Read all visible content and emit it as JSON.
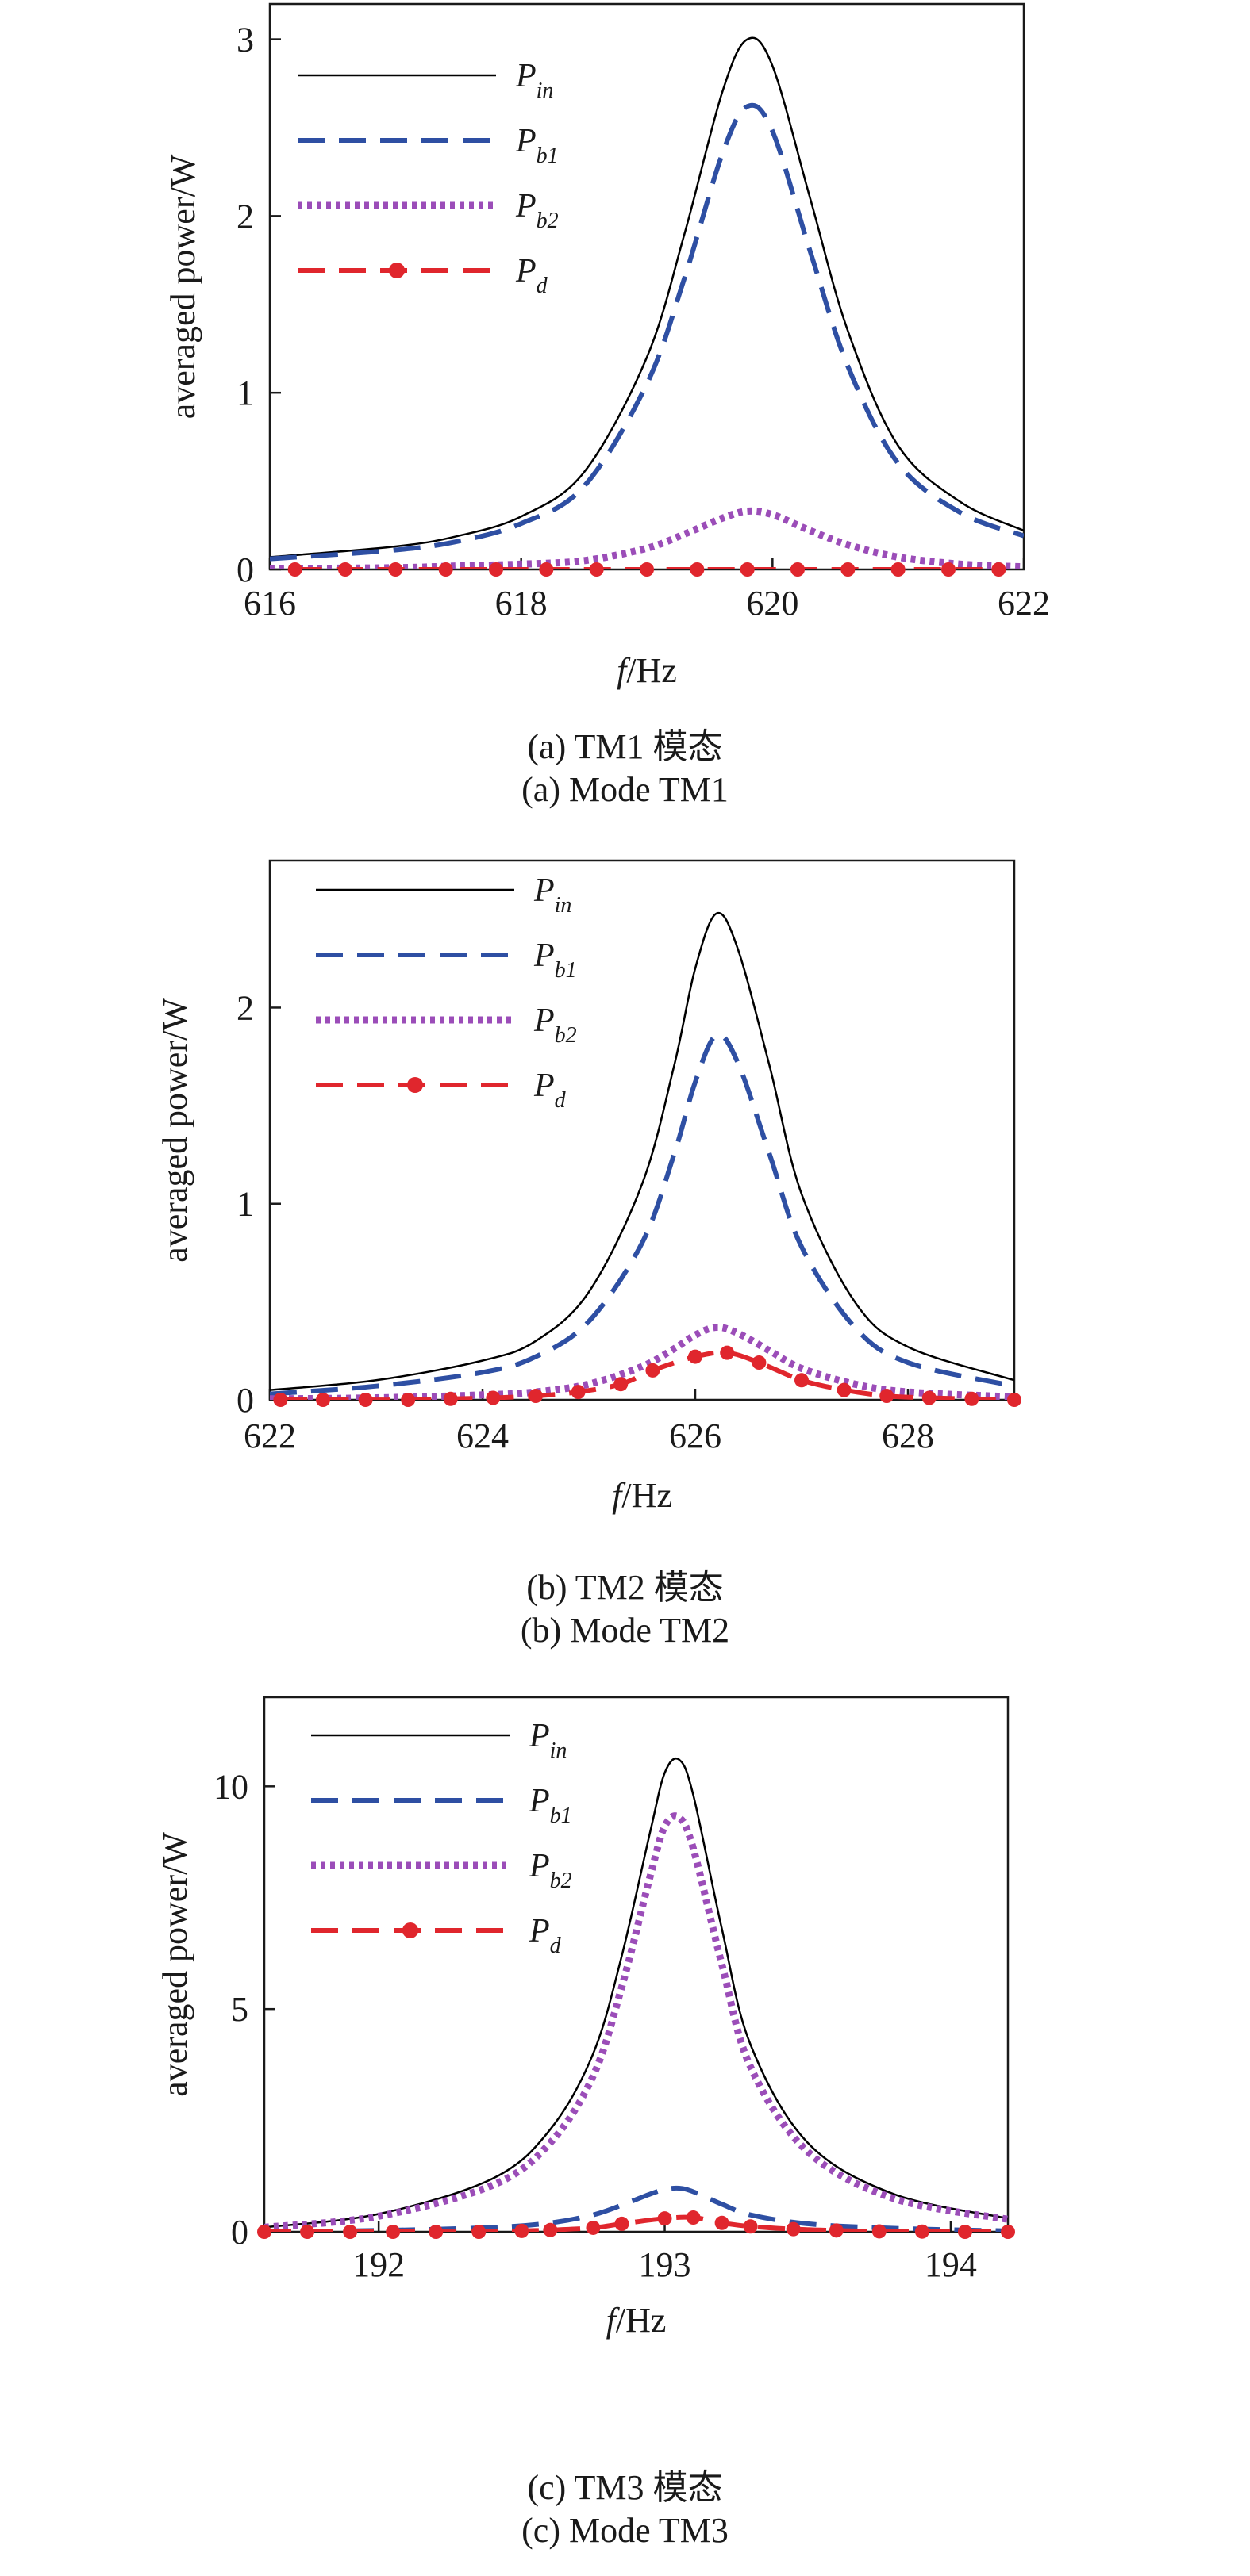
{
  "chart_data": [
    {
      "id": "a",
      "type": "line",
      "xlabel_var": "f",
      "xlabel_unit": "/Hz",
      "ylabel": "averaged power/W",
      "xlim": [
        616,
        622
      ],
      "ylim": [
        0,
        3.2
      ],
      "xticks": [
        "616",
        "618",
        "620",
        "622"
      ],
      "xtick_values": [
        616,
        618,
        620,
        622
      ],
      "yticks": [
        "0",
        "1",
        "2",
        "3"
      ],
      "ytick_values": [
        0,
        1,
        2,
        3
      ],
      "caption_cn": "(a) TM1 模态",
      "caption_en": "(a) Mode TM1",
      "series": [
        {
          "key": "Pin",
          "label_main": "P",
          "label_sub": "in",
          "color": "#000000",
          "style": "solid",
          "x": [
            616,
            617,
            617.5,
            618,
            618.5,
            619,
            619.3,
            619.6,
            619.8,
            620,
            620.3,
            620.6,
            621,
            621.5,
            622
          ],
          "y": [
            0.07,
            0.13,
            0.19,
            0.3,
            0.55,
            1.2,
            1.9,
            2.7,
            3.0,
            2.85,
            2.1,
            1.35,
            0.7,
            0.38,
            0.22
          ]
        },
        {
          "key": "Pb1",
          "label_main": "P",
          "label_sub": "b1",
          "color": "#2e4fa3",
          "style": "dash",
          "x": [
            616,
            617,
            617.5,
            618,
            618.5,
            619,
            619.3,
            619.6,
            619.8,
            620,
            620.3,
            620.6,
            621,
            621.5,
            622
          ],
          "y": [
            0.06,
            0.11,
            0.16,
            0.26,
            0.47,
            1.05,
            1.65,
            2.35,
            2.62,
            2.48,
            1.8,
            1.15,
            0.6,
            0.32,
            0.19
          ]
        },
        {
          "key": "Pb2",
          "label_main": "P",
          "label_sub": "b2",
          "color": "#9b4db8",
          "style": "dot",
          "x": [
            616,
            617,
            617.5,
            618,
            618.5,
            619,
            619.3,
            619.6,
            619.8,
            620,
            620.3,
            620.6,
            621,
            621.5,
            622
          ],
          "y": [
            0.005,
            0.01,
            0.02,
            0.03,
            0.05,
            0.12,
            0.2,
            0.29,
            0.33,
            0.31,
            0.22,
            0.14,
            0.07,
            0.03,
            0.015
          ]
        },
        {
          "key": "Pd",
          "label_main": "P",
          "label_sub": "d",
          "color": "#e0262d",
          "style": "dash-marker",
          "x": [
            616.2,
            616.6,
            617,
            617.4,
            617.8,
            618.2,
            618.6,
            619,
            619.4,
            619.8,
            620.2,
            620.6,
            621,
            621.4,
            621.8
          ],
          "y": [
            0,
            0,
            0,
            0,
            0,
            0,
            0,
            0,
            0,
            0,
            0,
            0,
            0,
            0,
            0
          ]
        }
      ]
    },
    {
      "id": "b",
      "type": "line",
      "xlabel_var": "f",
      "xlabel_unit": "/Hz",
      "ylabel": "averaged power/W",
      "xlim": [
        622,
        629
      ],
      "ylim": [
        0,
        2.75
      ],
      "xticks": [
        "622",
        "624",
        "626",
        "628"
      ],
      "xtick_values": [
        622,
        624,
        626,
        628
      ],
      "yticks": [
        "0",
        "1",
        "2"
      ],
      "ytick_values": [
        0,
        1,
        2
      ],
      "caption_cn": "(b) TM2 模态",
      "caption_en": "(b) Mode TM2",
      "series": [
        {
          "key": "Pin",
          "label_main": "P",
          "label_sub": "in",
          "color": "#000000",
          "style": "solid",
          "x": [
            622,
            623,
            624,
            624.5,
            625,
            625.5,
            625.8,
            626,
            626.2,
            626.4,
            626.7,
            627,
            627.5,
            628,
            629
          ],
          "y": [
            0.05,
            0.1,
            0.2,
            0.3,
            0.55,
            1.1,
            1.7,
            2.2,
            2.48,
            2.3,
            1.7,
            1.05,
            0.5,
            0.27,
            0.1
          ]
        },
        {
          "key": "Pb1",
          "label_main": "P",
          "label_sub": "b1",
          "color": "#2e4fa3",
          "style": "dash",
          "x": [
            622,
            623,
            624,
            624.5,
            625,
            625.5,
            625.8,
            626,
            626.2,
            626.4,
            626.7,
            627,
            627.5,
            628,
            629
          ],
          "y": [
            0.03,
            0.07,
            0.14,
            0.22,
            0.4,
            0.8,
            1.25,
            1.62,
            1.86,
            1.72,
            1.25,
            0.78,
            0.37,
            0.19,
            0.07
          ]
        },
        {
          "key": "Pb2",
          "label_main": "P",
          "label_sub": "b2",
          "color": "#9b4db8",
          "style": "dot",
          "x": [
            622,
            623,
            624,
            624.5,
            625,
            625.5,
            625.8,
            626,
            626.2,
            626.4,
            626.7,
            627,
            627.5,
            628,
            629
          ],
          "y": [
            0.005,
            0.01,
            0.025,
            0.04,
            0.08,
            0.17,
            0.26,
            0.33,
            0.37,
            0.34,
            0.25,
            0.16,
            0.08,
            0.04,
            0.015
          ]
        },
        {
          "key": "Pd",
          "label_main": "P",
          "label_sub": "d",
          "color": "#e0262d",
          "style": "dash-marker",
          "x": [
            622.1,
            622.5,
            622.9,
            623.3,
            623.7,
            624.1,
            624.5,
            624.9,
            625.3,
            625.6,
            626,
            626.3,
            626.6,
            627,
            627.4,
            627.8,
            628.2,
            628.6,
            629
          ],
          "y": [
            0,
            0,
            0,
            0,
            0.005,
            0.01,
            0.02,
            0.04,
            0.08,
            0.15,
            0.22,
            0.24,
            0.19,
            0.1,
            0.05,
            0.02,
            0.01,
            0.005,
            0
          ]
        }
      ]
    },
    {
      "id": "c",
      "type": "line",
      "xlabel_var": "f",
      "xlabel_unit": "/Hz",
      "ylabel": "averaged power/W",
      "xlim": [
        191.6,
        194.2
      ],
      "ylim": [
        0,
        12
      ],
      "xticks": [
        "192",
        "193",
        "194"
      ],
      "xtick_values": [
        192,
        193,
        194
      ],
      "yticks": [
        "0",
        "5",
        "10"
      ],
      "ytick_values": [
        0,
        5,
        10
      ],
      "caption_cn": "(c) TM3 模态",
      "caption_en": "(c) Mode TM3",
      "series": [
        {
          "key": "Pin",
          "label_main": "P",
          "label_sub": "in",
          "color": "#000000",
          "style": "solid",
          "x": [
            191.6,
            192,
            192.4,
            192.6,
            192.75,
            192.85,
            192.95,
            193,
            193.05,
            193.1,
            193.2,
            193.3,
            193.5,
            193.8,
            194.2
          ],
          "y": [
            0.1,
            0.4,
            1.2,
            2.3,
            4.0,
            6.2,
            9.0,
            10.3,
            10.6,
            9.8,
            6.8,
            4.2,
            2.0,
            0.85,
            0.3
          ]
        },
        {
          "key": "Pb1",
          "label_main": "P",
          "label_sub": "b1",
          "color": "#2e4fa3",
          "style": "dash",
          "x": [
            191.6,
            192,
            192.4,
            192.6,
            192.75,
            192.85,
            192.95,
            193,
            193.05,
            193.1,
            193.2,
            193.3,
            193.5,
            193.8,
            194.2
          ],
          "y": [
            0.01,
            0.03,
            0.1,
            0.2,
            0.38,
            0.6,
            0.85,
            0.95,
            0.98,
            0.9,
            0.62,
            0.38,
            0.18,
            0.08,
            0.02
          ]
        },
        {
          "key": "Pb2",
          "label_main": "P",
          "label_sub": "b2",
          "color": "#9b4db8",
          "style": "dot",
          "x": [
            191.6,
            192,
            192.4,
            192.6,
            192.75,
            192.85,
            192.95,
            193,
            193.05,
            193.1,
            193.2,
            193.3,
            193.5,
            193.8,
            194.2
          ],
          "y": [
            0.1,
            0.35,
            1.05,
            2.0,
            3.5,
            5.5,
            8.0,
            9.1,
            9.3,
            8.6,
            6.0,
            3.7,
            1.8,
            0.75,
            0.28
          ]
        },
        {
          "key": "Pd",
          "label_main": "P",
          "label_sub": "d",
          "color": "#e0262d",
          "style": "dash-marker",
          "x": [
            191.6,
            191.75,
            191.9,
            192.05,
            192.2,
            192.35,
            192.5,
            192.6,
            192.75,
            192.85,
            193,
            193.1,
            193.2,
            193.3,
            193.45,
            193.6,
            193.75,
            193.9,
            194.05,
            194.2
          ],
          "y": [
            0,
            0,
            0,
            0,
            0,
            0,
            0.02,
            0.04,
            0.09,
            0.18,
            0.3,
            0.32,
            0.2,
            0.12,
            0.06,
            0.03,
            0.01,
            0.005,
            0,
            0
          ]
        }
      ]
    }
  ]
}
